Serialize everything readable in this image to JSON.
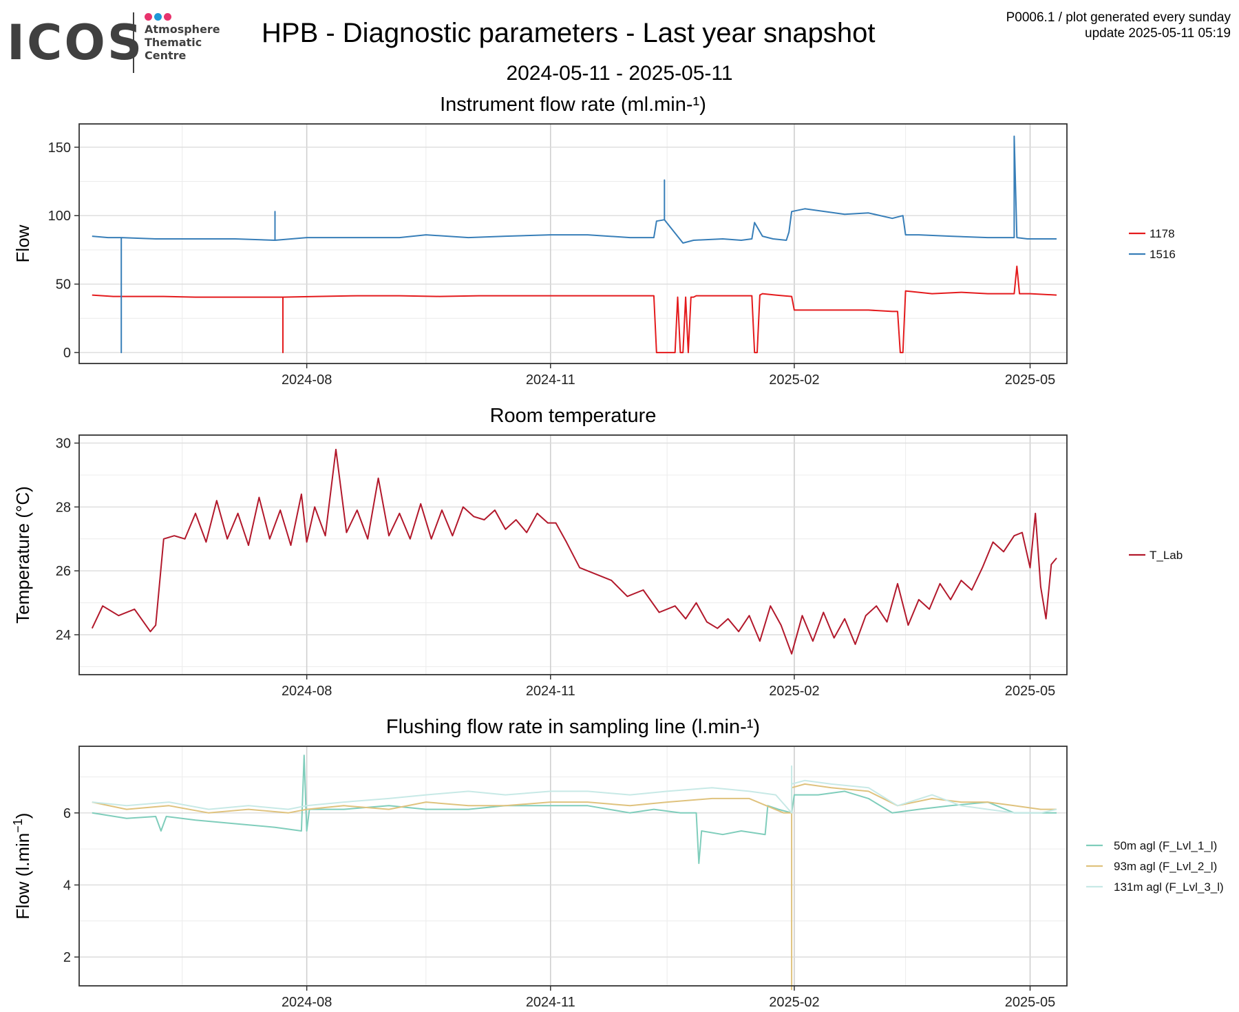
{
  "logo": {
    "word": "ICOS",
    "lines": [
      "Atmosphere",
      "Thematic",
      "Centre"
    ],
    "dot_colors": [
      "#e8336d",
      "#1e98d7",
      "#e8336d"
    ]
  },
  "header": {
    "title": "HPB - Diagnostic parameters - Last year snapshot",
    "period": "2024-05-11 - 2025-05-11",
    "info_line1": "P0006.1 / plot generated every sunday",
    "info_line2": "update  2025-05-11 05:19"
  },
  "chart_data": [
    {
      "type": "line",
      "title": "Instrument flow rate (ml.min-¹)",
      "ylabel": "Flow",
      "xlim": [
        "2024-05-11",
        "2025-05-11"
      ],
      "ylim": [
        -8,
        167
      ],
      "y_ticks": [
        0,
        50,
        100,
        150
      ],
      "x_ticks": [
        "2024-08",
        "2024-11",
        "2025-02",
        "2025-05"
      ],
      "grid": true,
      "legend_position": "right",
      "series": [
        {
          "name": "1178",
          "color": "#e41a1c",
          "x": [
            "2024-05-12",
            "2024-05-20",
            "2024-05-28",
            "2024-06-08",
            "2024-06-20",
            "2024-07-05",
            "2024-07-20",
            "2024-07-23",
            "2024-07-23",
            "2024-07-23",
            "2024-08-05",
            "2024-08-20",
            "2024-09-05",
            "2024-09-20",
            "2024-10-05",
            "2024-10-20",
            "2024-11-05",
            "2024-11-20",
            "2024-12-05",
            "2024-12-10",
            "2024-12-11",
            "2024-12-18",
            "2024-12-19",
            "2024-12-20",
            "2024-12-21",
            "2024-12-22",
            "2024-12-23",
            "2024-12-24",
            "2024-12-25",
            "2024-12-26",
            "2025-01-08",
            "2025-01-16",
            "2025-01-17",
            "2025-01-18",
            "2025-01-19",
            "2025-01-20",
            "2025-01-25",
            "2025-01-31",
            "2025-02-01",
            "2025-02-10",
            "2025-02-20",
            "2025-03-01",
            "2025-03-10",
            "2025-03-12",
            "2025-03-13",
            "2025-03-14",
            "2025-03-15",
            "2025-03-25",
            "2025-04-05",
            "2025-04-15",
            "2025-04-25",
            "2025-04-26",
            "2025-04-27",
            "2025-05-01",
            "2025-05-11"
          ],
          "y": [
            42,
            41,
            41,
            41,
            40.5,
            40.5,
            40.5,
            40.5,
            0,
            40.5,
            41,
            41.5,
            41.5,
            41,
            41.5,
            41.5,
            41.5,
            41.5,
            41.5,
            41.5,
            0,
            0,
            40.5,
            0,
            0,
            40.5,
            0,
            40.5,
            40.5,
            41.5,
            41.5,
            41.5,
            0,
            0,
            42,
            43,
            42,
            41,
            31,
            31,
            31,
            31,
            30,
            30,
            0,
            0,
            45,
            43,
            44,
            43,
            43,
            63,
            43,
            43,
            42
          ]
        },
        {
          "name": "1516",
          "color": "#377eb8",
          "x": [
            "2024-05-12",
            "2024-05-18",
            "2024-05-23",
            "2024-05-23",
            "2024-05-23",
            "2024-06-05",
            "2024-06-20",
            "2024-07-05",
            "2024-07-20",
            "2024-07-20",
            "2024-07-20",
            "2024-08-01",
            "2024-08-20",
            "2024-09-05",
            "2024-09-15",
            "2024-10-01",
            "2024-10-15",
            "2024-11-01",
            "2024-11-15",
            "2024-12-01",
            "2024-12-10",
            "2024-12-11",
            "2024-12-14",
            "2024-12-14",
            "2024-12-14",
            "2024-12-21",
            "2024-12-25",
            "2025-01-05",
            "2025-01-12",
            "2025-01-16",
            "2025-01-17",
            "2025-01-20",
            "2025-01-24",
            "2025-01-29",
            "2025-01-30",
            "2025-01-31",
            "2025-02-05",
            "2025-02-20",
            "2025-03-01",
            "2025-03-10",
            "2025-03-14",
            "2025-03-15",
            "2025-03-20",
            "2025-04-01",
            "2025-04-15",
            "2025-04-25",
            "2025-04-25",
            "2025-04-26",
            "2025-04-30",
            "2025-05-11"
          ],
          "y": [
            85,
            84,
            84,
            0,
            84,
            83,
            83,
            83,
            82,
            103,
            82,
            84,
            84,
            84,
            86,
            84,
            85,
            86,
            86,
            84,
            84,
            96,
            97,
            126,
            97,
            80,
            82,
            83,
            82,
            83,
            95,
            85,
            83,
            82,
            88,
            103,
            105,
            101,
            102,
            98,
            100,
            86,
            86,
            85,
            84,
            84,
            158,
            84,
            83,
            83
          ]
        }
      ]
    },
    {
      "type": "line",
      "title": "Room temperature",
      "ylabel": "Temperature (°C)",
      "xlim": [
        "2024-05-11",
        "2025-05-11"
      ],
      "ylim": [
        22.75,
        30.25
      ],
      "y_ticks": [
        24,
        26,
        28,
        30
      ],
      "x_ticks": [
        "2024-08",
        "2024-11",
        "2025-02",
        "2025-05"
      ],
      "grid": true,
      "legend_position": "right",
      "series": [
        {
          "name": "T_Lab",
          "color": "#b2182b",
          "x": [
            "2024-05-12",
            "2024-05-16",
            "2024-05-22",
            "2024-05-28",
            "2024-06-03",
            "2024-06-05",
            "2024-06-08",
            "2024-06-12",
            "2024-06-16",
            "2024-06-20",
            "2024-06-24",
            "2024-06-28",
            "2024-07-02",
            "2024-07-06",
            "2024-07-10",
            "2024-07-14",
            "2024-07-18",
            "2024-07-22",
            "2024-07-26",
            "2024-07-30",
            "2024-08-01",
            "2024-08-04",
            "2024-08-08",
            "2024-08-12",
            "2024-08-16",
            "2024-08-20",
            "2024-08-24",
            "2024-08-28",
            "2024-09-01",
            "2024-09-05",
            "2024-09-09",
            "2024-09-13",
            "2024-09-17",
            "2024-09-21",
            "2024-09-25",
            "2024-09-29",
            "2024-10-03",
            "2024-10-07",
            "2024-10-11",
            "2024-10-15",
            "2024-10-19",
            "2024-10-23",
            "2024-10-27",
            "2024-10-31",
            "2024-11-03",
            "2024-11-07",
            "2024-11-12",
            "2024-11-18",
            "2024-11-24",
            "2024-11-30",
            "2024-12-06",
            "2024-12-12",
            "2024-12-18",
            "2024-12-22",
            "2024-12-26",
            "2024-12-30",
            "2025-01-03",
            "2025-01-07",
            "2025-01-11",
            "2025-01-15",
            "2025-01-19",
            "2025-01-23",
            "2025-01-27",
            "2025-01-31",
            "2025-02-04",
            "2025-02-08",
            "2025-02-12",
            "2025-02-16",
            "2025-02-20",
            "2025-02-24",
            "2025-02-28",
            "2025-03-04",
            "2025-03-08",
            "2025-03-12",
            "2025-03-16",
            "2025-03-20",
            "2025-03-24",
            "2025-03-28",
            "2025-04-01",
            "2025-04-05",
            "2025-04-09",
            "2025-04-13",
            "2025-04-17",
            "2025-04-21",
            "2025-04-25",
            "2025-04-28",
            "2025-05-01",
            "2025-05-03",
            "2025-05-05",
            "2025-05-07",
            "2025-05-09",
            "2025-05-11"
          ],
          "y": [
            24.2,
            24.9,
            24.6,
            24.8,
            24.1,
            24.3,
            27.0,
            27.1,
            27.0,
            27.8,
            26.9,
            28.2,
            27.0,
            27.8,
            26.8,
            28.3,
            27.0,
            27.9,
            26.8,
            28.4,
            26.9,
            28.0,
            27.1,
            29.8,
            27.2,
            27.9,
            27.0,
            28.9,
            27.1,
            27.8,
            27.0,
            28.1,
            27.0,
            27.9,
            27.1,
            28.0,
            27.7,
            27.6,
            27.9,
            27.3,
            27.6,
            27.2,
            27.8,
            27.5,
            27.5,
            26.9,
            26.1,
            25.9,
            25.7,
            25.2,
            25.4,
            24.7,
            24.9,
            24.5,
            25.0,
            24.4,
            24.2,
            24.5,
            24.1,
            24.6,
            23.8,
            24.9,
            24.3,
            23.4,
            24.6,
            23.8,
            24.7,
            23.9,
            24.5,
            23.7,
            24.6,
            24.9,
            24.4,
            25.6,
            24.3,
            25.1,
            24.8,
            25.6,
            25.1,
            25.7,
            25.4,
            26.1,
            26.9,
            26.6,
            27.1,
            27.2,
            26.1,
            27.8,
            25.5,
            24.5,
            26.2,
            26.4
          ]
        }
      ]
    },
    {
      "type": "line",
      "title": "Flushing flow rate in sampling line (l.min-¹)",
      "ylabel": "Flow (l.min",
      "ylabel_sup": "−1",
      "ylabel_end": ")",
      "xlim": [
        "2024-05-11",
        "2025-05-11"
      ],
      "ylim": [
        1.2,
        7.85
      ],
      "y_ticks": [
        2,
        4,
        6
      ],
      "x_ticks": [
        "2024-08",
        "2024-11",
        "2025-02",
        "2025-05"
      ],
      "grid": true,
      "legend_position": "right",
      "series": [
        {
          "name": "50m agl (F_Lvl_1_l)",
          "color": "#7fcdbb",
          "x": [
            "2024-05-12",
            "2024-05-25",
            "2024-06-05",
            "2024-06-07",
            "2024-06-09",
            "2024-06-20",
            "2024-07-05",
            "2024-07-20",
            "2024-07-30",
            "2024-07-31",
            "2024-08-01",
            "2024-08-02",
            "2024-08-15",
            "2024-09-01",
            "2024-09-15",
            "2024-10-01",
            "2024-10-15",
            "2024-11-01",
            "2024-11-15",
            "2024-12-01",
            "2024-12-10",
            "2024-12-20",
            "2024-12-26",
            "2024-12-27",
            "2024-12-28",
            "2025-01-05",
            "2025-01-12",
            "2025-01-21",
            "2025-01-22",
            "2025-01-26",
            "2025-01-31",
            "2025-02-01",
            "2025-02-10",
            "2025-02-20",
            "2025-03-01",
            "2025-03-10",
            "2025-03-20",
            "2025-04-01",
            "2025-04-15",
            "2025-04-25",
            "2025-05-05",
            "2025-05-11"
          ],
          "y": [
            6.0,
            5.85,
            5.9,
            5.5,
            5.9,
            5.8,
            5.7,
            5.6,
            5.5,
            7.6,
            5.5,
            6.1,
            6.1,
            6.2,
            6.1,
            6.1,
            6.2,
            6.2,
            6.2,
            6.0,
            6.1,
            6.0,
            6.0,
            4.6,
            5.5,
            5.4,
            5.5,
            5.4,
            6.2,
            6.1,
            6.0,
            6.5,
            6.5,
            6.6,
            6.4,
            6.0,
            6.1,
            6.2,
            6.3,
            6.0,
            6.0,
            6.0
          ]
        },
        {
          "name": "93m agl (F_Lvl_2_l)",
          "color": "#dfc27d",
          "x": [
            "2024-05-12",
            "2024-05-25",
            "2024-06-10",
            "2024-06-25",
            "2024-07-10",
            "2024-07-25",
            "2024-08-01",
            "2024-08-15",
            "2024-09-01",
            "2024-09-15",
            "2024-10-01",
            "2024-10-15",
            "2024-11-01",
            "2024-11-15",
            "2024-12-01",
            "2024-12-15",
            "2025-01-01",
            "2025-01-15",
            "2025-01-28",
            "2025-01-31",
            "2025-01-31",
            "2025-01-31",
            "2025-02-05",
            "2025-02-15",
            "2025-03-01",
            "2025-03-12",
            "2025-03-25",
            "2025-04-05",
            "2025-04-15",
            "2025-04-25",
            "2025-05-05",
            "2025-05-11"
          ],
          "y": [
            6.3,
            6.1,
            6.2,
            6.0,
            6.1,
            6.0,
            6.1,
            6.2,
            6.1,
            6.3,
            6.2,
            6.2,
            6.3,
            6.3,
            6.2,
            6.3,
            6.4,
            6.4,
            6.0,
            6.0,
            1.1,
            6.7,
            6.8,
            6.7,
            6.6,
            6.2,
            6.4,
            6.3,
            6.3,
            6.2,
            6.1,
            6.1
          ]
        },
        {
          "name": "131m agl (F_Lvl_3_l)",
          "color": "#c7e9e6",
          "x": [
            "2024-05-12",
            "2024-05-25",
            "2024-06-10",
            "2024-06-25",
            "2024-07-10",
            "2024-07-25",
            "2024-08-01",
            "2024-08-15",
            "2024-09-01",
            "2024-09-15",
            "2024-10-01",
            "2024-10-15",
            "2024-11-01",
            "2024-11-15",
            "2024-12-01",
            "2024-12-15",
            "2025-01-01",
            "2025-01-15",
            "2025-01-25",
            "2025-01-31",
            "2025-01-31",
            "2025-01-31",
            "2025-02-05",
            "2025-02-15",
            "2025-03-01",
            "2025-03-12",
            "2025-03-25",
            "2025-04-05",
            "2025-04-15",
            "2025-04-25",
            "2025-05-05",
            "2025-05-11"
          ],
          "y": [
            6.3,
            6.2,
            6.3,
            6.1,
            6.2,
            6.1,
            6.2,
            6.3,
            6.4,
            6.5,
            6.6,
            6.5,
            6.6,
            6.6,
            6.5,
            6.6,
            6.7,
            6.6,
            6.5,
            6.0,
            7.3,
            6.8,
            6.9,
            6.8,
            6.7,
            6.2,
            6.5,
            6.2,
            6.1,
            6.0,
            6.0,
            6.1
          ]
        }
      ]
    }
  ]
}
